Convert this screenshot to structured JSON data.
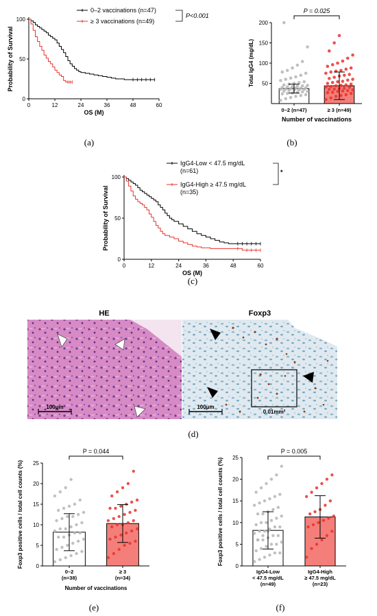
{
  "panel_labels": [
    "(a)",
    "(b)",
    "(c)",
    "(d)",
    "(e)",
    "(f)"
  ],
  "colors": {
    "black": "#000000",
    "red": "#e8322c",
    "light_red": "#f47f7a",
    "gray_dot": "#b5b5b5",
    "red_dot": "#e8322c",
    "he_bg": "#d78ac4",
    "foxp3_bg": "#dfe9ef"
  },
  "chart_data": [
    {
      "id": "a",
      "type": "line",
      "xlabel": "OS (M)",
      "ylabel": "Probability of Survival",
      "xlim": [
        0,
        60
      ],
      "ylim": [
        0,
        100
      ],
      "xticks": [
        0,
        12,
        24,
        36,
        48,
        60
      ],
      "yticks": [
        0,
        50,
        100
      ],
      "legend_position": "top-right",
      "pvalue": "P<0.001",
      "series": [
        {
          "name": "0–2 vaccinations (n=47)",
          "color": "#000000",
          "x": [
            0,
            1,
            2,
            3,
            4,
            5,
            6,
            7,
            8,
            9,
            10,
            11,
            12,
            13,
            14,
            15,
            16,
            17,
            18,
            19,
            20,
            21,
            22,
            23,
            24,
            26,
            28,
            30,
            32,
            34,
            36,
            38,
            40,
            42,
            44,
            46,
            48,
            50,
            52,
            54,
            56,
            58
          ],
          "y": [
            100,
            98,
            96,
            93,
            91,
            89,
            87,
            85,
            83,
            80,
            78,
            76,
            74,
            70,
            66,
            62,
            58,
            53,
            48,
            44,
            41,
            38,
            36,
            34,
            33,
            32,
            31,
            30,
            29,
            28,
            27,
            26,
            25,
            25,
            24,
            24,
            24,
            24,
            24,
            24,
            24,
            24
          ]
        },
        {
          "name": "≥ 3 vaccinations (n=49)",
          "color": "#e8322c",
          "x": [
            0,
            1,
            2,
            3,
            4,
            5,
            6,
            7,
            8,
            9,
            10,
            11,
            12,
            13,
            14,
            15,
            16,
            17,
            18,
            19,
            20
          ],
          "y": [
            100,
            94,
            86,
            78,
            72,
            66,
            61,
            55,
            51,
            47,
            44,
            40,
            36,
            33,
            30,
            28,
            23,
            21,
            21,
            21,
            21
          ]
        }
      ]
    },
    {
      "id": "b",
      "type": "bar",
      "xlabel": "Number of vaccinations",
      "ylabel": "Total IgG4 (mg/dL)",
      "ylim": [
        0,
        200
      ],
      "yticks": [
        50,
        100,
        150,
        200
      ],
      "categories": [
        "0–2 (n=47)",
        "≥ 3 (n=49)"
      ],
      "values": [
        37,
        44
      ],
      "sd": [
        11,
        34
      ],
      "pvalue": "P = 0.025",
      "points": [
        [
          8,
          12,
          15,
          18,
          20,
          22,
          24,
          25,
          26,
          28,
          29,
          30,
          31,
          32,
          33,
          34,
          35,
          35,
          36,
          37,
          38,
          38,
          39,
          40,
          41,
          42,
          43,
          44,
          45,
          46,
          48,
          50,
          52,
          54,
          57,
          60,
          63,
          66,
          70,
          75,
          78,
          82,
          88,
          95,
          104,
          140,
          202
        ],
        [
          10,
          14,
          18,
          20,
          22,
          25,
          27,
          28,
          30,
          31,
          32,
          34,
          35,
          36,
          37,
          38,
          40,
          41,
          42,
          44,
          45,
          46,
          48,
          50,
          52,
          54,
          55,
          58,
          60,
          62,
          65,
          68,
          70,
          72,
          75,
          78,
          80,
          82,
          85,
          88,
          92,
          96,
          100,
          105,
          112,
          120,
          130,
          150,
          168
        ]
      ]
    },
    {
      "id": "c",
      "type": "line",
      "xlabel": "OS (M)",
      "ylabel": "Probability of Survival",
      "xlim": [
        0,
        60
      ],
      "ylim": [
        0,
        100
      ],
      "xticks": [
        0,
        12,
        24,
        36,
        48,
        60
      ],
      "yticks": [
        0,
        50,
        100
      ],
      "legend_position": "top-right",
      "significance": "*",
      "series": [
        {
          "name": "IgG4-Low < 47.5 mg/dL (n=61)",
          "color": "#000000",
          "x": [
            0,
            1,
            2,
            3,
            4,
            5,
            6,
            7,
            8,
            9,
            10,
            11,
            12,
            13,
            14,
            15,
            16,
            17,
            18,
            19,
            20,
            21,
            22,
            24,
            26,
            28,
            30,
            32,
            34,
            36,
            38,
            40,
            42,
            44,
            46,
            48,
            50,
            52,
            54,
            56,
            58,
            60
          ],
          "y": [
            100,
            98,
            96,
            94,
            92,
            90,
            87,
            84,
            82,
            80,
            78,
            76,
            74,
            72,
            70,
            66,
            63,
            60,
            56,
            53,
            50,
            48,
            46,
            43,
            40,
            37,
            34,
            31,
            29,
            27,
            25,
            23,
            21,
            20,
            19,
            19,
            19,
            19,
            19,
            19,
            19,
            19
          ]
        },
        {
          "name": "IgG4-High ≥ 47.5 mg/dL (n=35)",
          "color": "#e8322c",
          "x": [
            0,
            1,
            2,
            3,
            4,
            5,
            6,
            7,
            8,
            9,
            10,
            11,
            12,
            13,
            14,
            15,
            16,
            17,
            18,
            20,
            22,
            24,
            26,
            28,
            30,
            32,
            34,
            36,
            38,
            40,
            42,
            44,
            46,
            48,
            50,
            52,
            54,
            56,
            58,
            60
          ],
          "y": [
            100,
            95,
            89,
            83,
            77,
            73,
            70,
            68,
            66,
            63,
            60,
            55,
            51,
            46,
            41,
            38,
            34,
            31,
            29,
            27,
            25,
            22,
            20,
            18,
            16,
            15,
            14,
            14,
            13,
            13,
            13,
            13,
            13,
            13,
            13,
            11,
            11,
            11,
            11,
            11
          ]
        }
      ]
    },
    {
      "id": "e",
      "type": "bar",
      "xlabel": "Number of vaccinations",
      "ylabel": "Foxp3 positive cells / total cell counts (%)",
      "ylim": [
        0,
        25
      ],
      "yticks": [
        0,
        5,
        10,
        15,
        20,
        25
      ],
      "categories": [
        "0–2\n(n=38)",
        "≥ 3\n(n=34)"
      ],
      "values": [
        8.2,
        10.3
      ],
      "sd": [
        4.5,
        4.6
      ],
      "pvalue": "P = 0.044",
      "points": [
        [
          1,
          1.5,
          2,
          2.5,
          3,
          3.5,
          4,
          4.5,
          5,
          5.5,
          6,
          6.5,
          7,
          7,
          7.5,
          8,
          8,
          8.5,
          9,
          9,
          9.5,
          10,
          10.5,
          11,
          11.5,
          12,
          12,
          12.5,
          13,
          13.5,
          14,
          14.5,
          15,
          16,
          17,
          18,
          19,
          21
        ],
        [
          2,
          3,
          4,
          5,
          5.5,
          6,
          6.5,
          7,
          7.5,
          8,
          8.5,
          9,
          9.5,
          10,
          10,
          10.5,
          11,
          11,
          11.5,
          12,
          12.5,
          13,
          13.5,
          14,
          14,
          14.5,
          15,
          15.5,
          16,
          17,
          18,
          19,
          20,
          23
        ]
      ]
    },
    {
      "id": "f",
      "type": "bar",
      "xlabel": "",
      "ylabel": "Foxp3 positive cells / total cell counts (%)",
      "ylim": [
        0,
        25
      ],
      "yticks": [
        0,
        5,
        10,
        15,
        20,
        25
      ],
      "categories": [
        "IgG4-Low\n< 47.5 mg/dL\n(n=49)",
        "IgG4-High\n≥ 47.5 mg/dL\n(n=23)"
      ],
      "values": [
        8.2,
        11.3
      ],
      "sd": [
        4.3,
        4.9
      ],
      "pvalue": "P = 0.005",
      "points": [
        [
          1,
          1.5,
          2,
          2.5,
          3,
          3,
          3.5,
          4,
          4.5,
          5,
          5,
          5.5,
          6,
          6,
          6.5,
          7,
          7,
          7.5,
          8,
          8,
          8.5,
          9,
          9,
          9.5,
          10,
          10,
          10.5,
          11,
          11.5,
          12,
          12,
          12.5,
          13,
          13.5,
          14,
          14.5,
          15,
          15.5,
          16,
          16.5,
          17,
          18,
          19,
          20,
          21,
          23,
          6,
          7,
          8
        ],
        [
          2,
          4,
          5,
          6,
          7,
          8,
          9,
          9.5,
          10,
          10.5,
          11,
          11.5,
          12,
          12.5,
          13,
          14,
          15,
          16,
          17,
          18,
          19,
          20,
          21
        ]
      ]
    }
  ],
  "histology": {
    "he_title": "HE",
    "foxp3_title": "Foxp3",
    "scale_he": "100μm",
    "scale_foxp3": "100μm",
    "box_label": "0.01mm²"
  }
}
